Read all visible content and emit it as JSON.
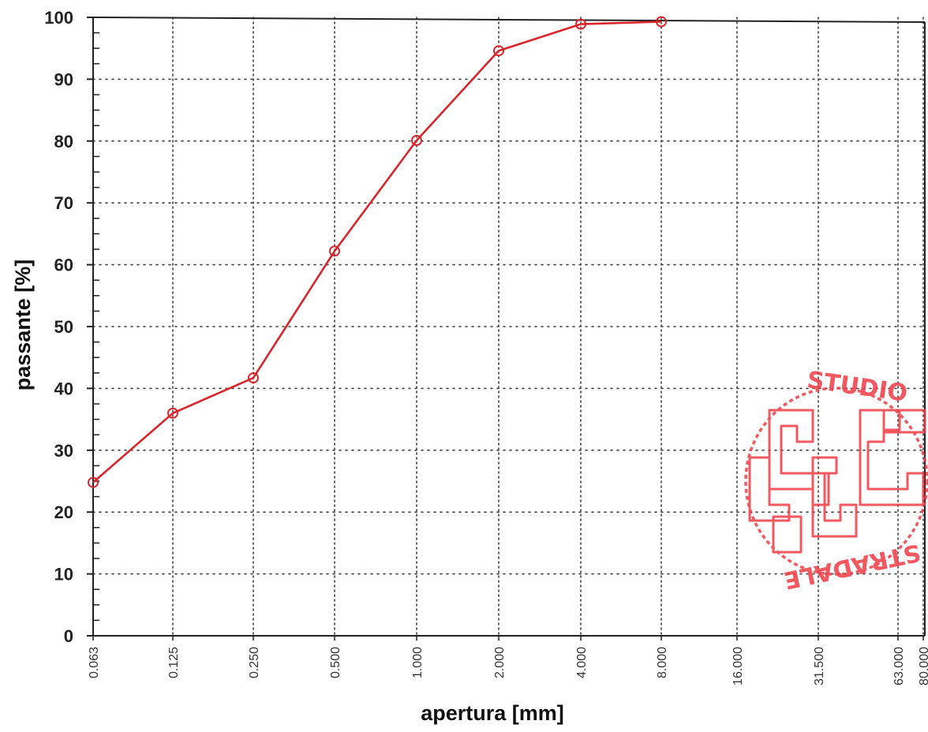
{
  "chart_data": {
    "type": "line",
    "title": "",
    "xlabel": "apertura [mm]",
    "ylabel": "passante [%]",
    "x_scale": "log",
    "x_ticks": [
      "0.063",
      "0.125",
      "0.250",
      "0.500",
      "1.000",
      "2.000",
      "4.000",
      "8.000",
      "16.000",
      "31.500",
      "63.000",
      "80.000"
    ],
    "ylim": [
      0,
      100
    ],
    "y_ticks": [
      "0",
      "10",
      "20",
      "30",
      "40",
      "50",
      "60",
      "70",
      "80",
      "90",
      "100"
    ],
    "grid": true,
    "series": [
      {
        "x": [
          0.063,
          0.125,
          0.25,
          0.5,
          1.0,
          2.0,
          4.0,
          8.0
        ],
        "y": [
          24.8,
          36.0,
          41.7,
          62.2,
          80.1,
          94.6,
          98.9,
          99.3
        ],
        "color": "#d9262c",
        "marker": "circle"
      }
    ]
  },
  "stamp": {
    "text_top": "STUDIO",
    "text_bottom": "STRADALE",
    "color": "#ef3b45"
  }
}
